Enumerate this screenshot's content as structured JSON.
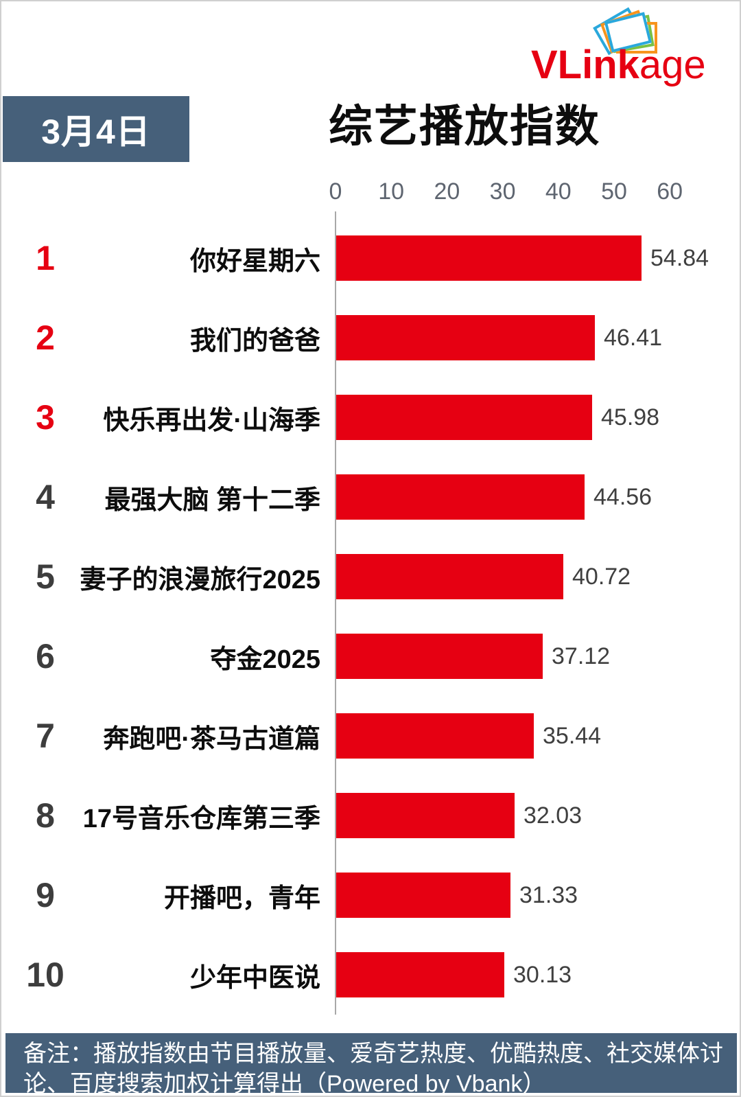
{
  "logo": {
    "bold": "VLink",
    "light": "age",
    "color": "#e60012"
  },
  "header": {
    "date": "3月4日",
    "title": "综艺播放指数"
  },
  "chart_data": {
    "type": "bar",
    "orientation": "horizontal",
    "title": "综艺播放指数",
    "date": "3月4日",
    "xlim": [
      0,
      60
    ],
    "x_ticks": [
      "0",
      "10",
      "20",
      "30",
      "40",
      "50",
      "60"
    ],
    "grid": false,
    "bar_color": "#e60012",
    "top3_rank_color": "#e60012",
    "rank_color": "#3d3d3d",
    "ranks": [
      "1",
      "2",
      "3",
      "4",
      "5",
      "6",
      "7",
      "8",
      "9",
      "10"
    ],
    "categories": [
      "你好星期六",
      "我们的爸爸",
      "快乐再出发·山海季",
      "最强大脑 第十二季",
      "妻子的浪漫旅行2025",
      "夺金2025",
      "奔跑吧·茶马古道篇",
      "17号音乐仓库第三季",
      "开播吧，青年",
      "少年中医说"
    ],
    "values": [
      54.84,
      46.41,
      45.98,
      44.56,
      40.72,
      37.12,
      35.44,
      32.03,
      31.33,
      30.13
    ],
    "value_labels": [
      "54.84",
      "46.41",
      "45.98",
      "44.56",
      "40.72",
      "37.12",
      "35.44",
      "32.03",
      "31.33",
      "30.13"
    ]
  },
  "footer": {
    "note": "备注：播放指数由节目播放量、爱奇艺热度、优酷热度、社交媒体讨论、百度搜索加权计算得出（Powered by Vbank）"
  },
  "colors": {
    "accent_red": "#e60012",
    "panel_slate": "#46607a",
    "tick_gray": "#5e6570",
    "axis_gray": "#a8a8a8",
    "value_gray": "#3f3f3f"
  }
}
